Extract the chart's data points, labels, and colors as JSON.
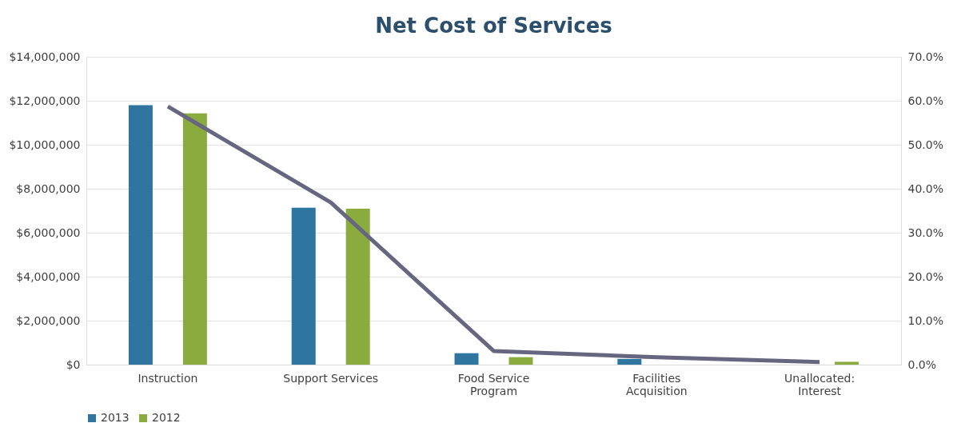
{
  "chart_data": {
    "type": "bar",
    "title": "Net Cost of Services",
    "categories": [
      "Instruction",
      "Support Services",
      "Food Service Program",
      "Facilities Acquisition",
      "Unallocated: Interest"
    ],
    "series": [
      {
        "name": "2013",
        "color": "#2e75a0",
        "values": [
          11800000,
          7140000,
          520000,
          260000,
          0
        ]
      },
      {
        "name": "2012",
        "color": "#8aac3e",
        "values": [
          11430000,
          7090000,
          340000,
          0,
          130000
        ]
      },
      {
        "type": "line",
        "axis": "y2",
        "color": "#676680",
        "values": [
          58.7,
          36.9,
          3.1,
          1.7,
          0.6
        ]
      }
    ],
    "ylim": [
      0,
      14000000
    ],
    "yticks": [
      {
        "value": 0,
        "label": "$0"
      },
      {
        "value": 2000000,
        "label": "$2,000,000"
      },
      {
        "value": 4000000,
        "label": "$4,000,000"
      },
      {
        "value": 6000000,
        "label": "$6,000,000"
      },
      {
        "value": 8000000,
        "label": "$8,000,000"
      },
      {
        "value": 10000000,
        "label": "$10,000,000"
      },
      {
        "value": 12000000,
        "label": "$12,000,000"
      },
      {
        "value": 14000000,
        "label": "$14,000,000"
      }
    ],
    "y2lim": [
      0,
      70
    ],
    "y2ticks": [
      {
        "value": 0,
        "label": "0.0%"
      },
      {
        "value": 10,
        "label": "10.0%"
      },
      {
        "value": 20,
        "label": "20.0%"
      },
      {
        "value": 30,
        "label": "30.0%"
      },
      {
        "value": 40,
        "label": "40.0%"
      },
      {
        "value": 50,
        "label": "50.0%"
      },
      {
        "value": 60,
        "label": "60.0%"
      },
      {
        "value": 70,
        "label": "70.0%"
      }
    ],
    "grid": "y",
    "legend": "bottom"
  }
}
